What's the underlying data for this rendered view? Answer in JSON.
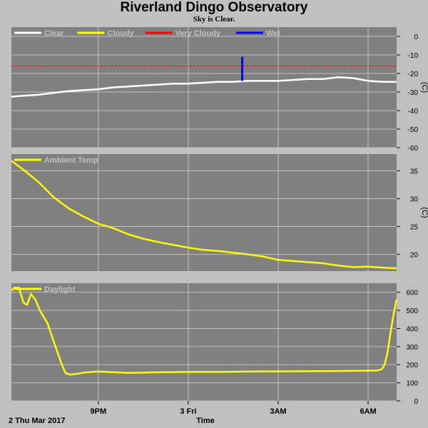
{
  "header": {
    "title": "Riverland Dingo Observatory",
    "subtitle": "Sky is Clear."
  },
  "colors": {
    "plot_bg": "#808080",
    "frame_bg": "#c0c0c0",
    "grid": "#c0c0c0",
    "clear": "#ffffff",
    "cloudy": "#ffff00",
    "very_cloudy": "#ff0000",
    "wet": "#0000ff",
    "ambient": "#ffff00",
    "daylight": "#ffff00",
    "legend_text": "#c0c0c0"
  },
  "x_axis": {
    "label": "Time",
    "start_label": "2 Thu Mar 2017",
    "tick_labels": [
      "9PM",
      "3 Fri",
      "3AM",
      "6AM"
    ],
    "tick_hours": [
      21,
      24,
      27,
      30
    ],
    "range_hours": [
      18.1,
      30.95
    ]
  },
  "chart_data": [
    {
      "type": "line",
      "title": "",
      "ylabel": "(C)",
      "ylim": [
        -60,
        5
      ],
      "yticks": [
        0,
        -10,
        -20,
        -30,
        -40,
        -50,
        -60
      ],
      "grid": true,
      "legend": [
        {
          "name": "Clear",
          "color": "#ffffff"
        },
        {
          "name": "Cloudy",
          "color": "#ffff00"
        },
        {
          "name": "Very Cloudy",
          "color": "#ff0000"
        },
        {
          "name": "Wet",
          "color": "#0000ff"
        }
      ],
      "reference_lines": [
        {
          "name": "Very Cloudy",
          "y": -16,
          "style": "dashed",
          "color": "#ff0000"
        }
      ],
      "series": [
        {
          "name": "Clear",
          "color": "#ffffff",
          "x": [
            18.1,
            18.5,
            19.0,
            19.5,
            20.0,
            20.5,
            21.0,
            21.5,
            22.0,
            22.5,
            23.0,
            23.5,
            24.0,
            24.5,
            25.0,
            25.5,
            26.0,
            26.5,
            27.0,
            27.5,
            28.0,
            28.5,
            29.0,
            29.5,
            30.0,
            30.5,
            30.95
          ],
          "values": [
            -32.5,
            -32,
            -31.5,
            -30.5,
            -29.5,
            -29,
            -28.5,
            -27.5,
            -27,
            -26.5,
            -26,
            -25.5,
            -25.5,
            -25,
            -24.5,
            -24.5,
            -24,
            -24,
            -24,
            -23.5,
            -23,
            -23,
            -22,
            -22.5,
            -24,
            -24.5,
            -24.5
          ]
        }
      ],
      "events": [
        {
          "name": "Wet",
          "x": 25.8,
          "y_from": -24,
          "y_to": -11,
          "color": "#0000ff"
        }
      ]
    },
    {
      "type": "line",
      "title": "",
      "ylabel": "(C)",
      "ylim": [
        17,
        38
      ],
      "yticks": [
        20,
        25,
        30,
        35
      ],
      "grid": true,
      "legend": [
        {
          "name": "Ambient Temp",
          "color": "#ffff00"
        }
      ],
      "series": [
        {
          "name": "Ambient Temp",
          "color": "#ffff00",
          "x": [
            18.1,
            18.5,
            19.0,
            19.5,
            20.0,
            20.5,
            21.0,
            21.5,
            22.0,
            22.5,
            23.0,
            23.5,
            24.0,
            24.5,
            25.0,
            25.5,
            26.0,
            26.5,
            27.0,
            27.5,
            28.0,
            28.5,
            29.0,
            29.5,
            30.0,
            30.5,
            30.95
          ],
          "values": [
            36.8,
            35.2,
            33.0,
            30.3,
            28.3,
            26.8,
            25.5,
            24.7,
            23.6,
            22.8,
            22.2,
            21.7,
            21.2,
            20.8,
            20.6,
            20.3,
            20.0,
            19.6,
            19.0,
            18.8,
            18.6,
            18.4,
            18.0,
            17.7,
            17.8,
            17.6,
            17.5
          ]
        }
      ]
    },
    {
      "type": "line",
      "title": "",
      "ylabel": "",
      "ylim": [
        0,
        650
      ],
      "yticks": [
        0,
        100,
        200,
        300,
        400,
        500,
        600
      ],
      "grid": true,
      "legend": [
        {
          "name": "Daylight",
          "color": "#ffff00"
        }
      ],
      "series": [
        {
          "name": "Daylight",
          "color": "#ffff00",
          "x": [
            18.1,
            18.2,
            18.35,
            18.5,
            18.62,
            18.75,
            18.9,
            19.05,
            19.3,
            19.55,
            19.75,
            19.9,
            20.05,
            20.3,
            20.6,
            21.0,
            22.0,
            23.0,
            24.0,
            25.0,
            26.0,
            27.0,
            28.0,
            29.0,
            29.5,
            30.0,
            30.3,
            30.45,
            30.55,
            30.65,
            30.75,
            30.85,
            30.95
          ],
          "values": [
            610,
            625,
            625,
            545,
            530,
            590,
            560,
            500,
            430,
            310,
            215,
            155,
            145,
            150,
            158,
            162,
            155,
            158,
            160,
            160,
            162,
            163,
            164,
            165,
            166,
            167,
            168,
            175,
            200,
            270,
            380,
            480,
            560
          ]
        }
      ]
    }
  ]
}
